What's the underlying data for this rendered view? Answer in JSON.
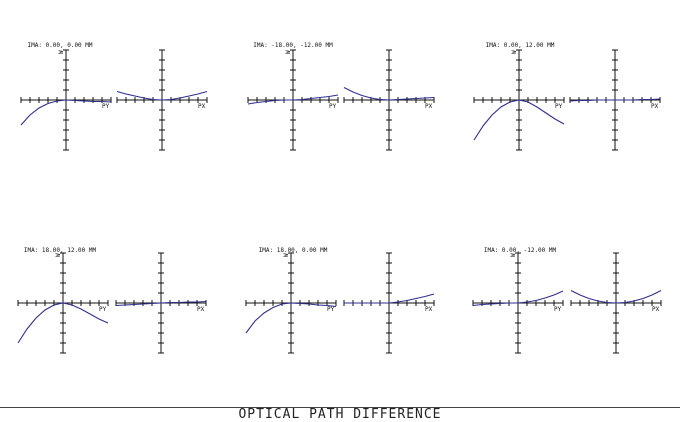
{
  "footer": {
    "title": "OPTICAL PATH DIFFERENCE"
  },
  "style": {
    "curve_color": "#2f2f8f",
    "axis_color": "#111111"
  },
  "chart_data": [
    {
      "type": "line",
      "title": "IMA: 0.00, 0.00 MM",
      "tangential": {
        "xlabel": "PY",
        "ylabel": "W",
        "x": [
          -1,
          -0.8,
          -0.6,
          -0.4,
          -0.2,
          0,
          0.2,
          0.4,
          0.6,
          0.8,
          1
        ],
        "y": [
          -0.5,
          -0.3,
          -0.16,
          -0.07,
          -0.02,
          0,
          -0.01,
          -0.02,
          -0.03,
          -0.03,
          -0.04
        ]
      },
      "sagittal": {
        "xlabel": "PX",
        "x": [
          -1,
          -0.8,
          -0.6,
          -0.4,
          -0.2,
          0,
          0.2,
          0.4,
          0.6,
          0.8,
          1
        ],
        "y": [
          0.17,
          0.12,
          0.08,
          0.04,
          0.01,
          0,
          0.01,
          0.04,
          0.08,
          0.12,
          0.17
        ]
      }
    },
    {
      "type": "line",
      "title": "IMA: -18.00, -12.00 MM",
      "tangential": {
        "xlabel": "PY",
        "ylabel": "W",
        "x": [
          -1,
          -0.8,
          -0.6,
          -0.4,
          -0.2,
          0,
          0.2,
          0.4,
          0.6,
          0.8,
          1
        ],
        "y": [
          -0.08,
          -0.05,
          -0.03,
          -0.01,
          0,
          0,
          0.01,
          0.03,
          0.05,
          0.07,
          0.1
        ]
      },
      "sagittal": {
        "xlabel": "PX",
        "x": [
          -1,
          -0.8,
          -0.6,
          -0.4,
          -0.2,
          0,
          0.2,
          0.4,
          0.6,
          0.8,
          1
        ],
        "y": [
          0.25,
          0.16,
          0.09,
          0.04,
          0.01,
          0,
          0.01,
          0.02,
          0.03,
          0.04,
          0.05
        ]
      }
    },
    {
      "type": "line",
      "title": "IMA: 0.00, 12.00 MM",
      "tangential": {
        "xlabel": "PY",
        "ylabel": "W",
        "x": [
          -1,
          -0.8,
          -0.6,
          -0.4,
          -0.2,
          0,
          0.2,
          0.4,
          0.6,
          0.8,
          1
        ],
        "y": [
          -0.8,
          -0.52,
          -0.3,
          -0.14,
          -0.04,
          0,
          -0.04,
          -0.14,
          -0.26,
          -0.38,
          -0.48
        ]
      },
      "sagittal": {
        "xlabel": "PX",
        "x": [
          -1,
          -0.8,
          -0.6,
          -0.4,
          -0.2,
          0,
          0.2,
          0.4,
          0.6,
          0.8,
          1
        ],
        "y": [
          -0.02,
          -0.01,
          -0.01,
          0,
          0,
          0,
          0,
          0,
          0.01,
          0.01,
          0.02
        ]
      }
    },
    {
      "type": "line",
      "title": "IMA: 18.00, 12.00 MM",
      "tangential": {
        "xlabel": "PY",
        "ylabel": "W",
        "x": [
          -1,
          -0.8,
          -0.6,
          -0.4,
          -0.2,
          0,
          0.2,
          0.4,
          0.6,
          0.8,
          1
        ],
        "y": [
          -0.8,
          -0.52,
          -0.3,
          -0.14,
          -0.04,
          0,
          -0.04,
          -0.12,
          -0.22,
          -0.32,
          -0.4
        ]
      },
      "sagittal": {
        "xlabel": "PX",
        "x": [
          -1,
          -0.8,
          -0.6,
          -0.4,
          -0.2,
          0,
          0.2,
          0.4,
          0.6,
          0.8,
          1
        ],
        "y": [
          -0.05,
          -0.04,
          -0.03,
          -0.02,
          -0.01,
          0,
          0.01,
          0.01,
          0.02,
          0.02,
          0.03
        ]
      }
    },
    {
      "type": "line",
      "title": "IMA: 18.00, 0.00 MM",
      "tangential": {
        "xlabel": "PY",
        "ylabel": "W",
        "x": [
          -1,
          -0.8,
          -0.6,
          -0.4,
          -0.2,
          0,
          0.2,
          0.4,
          0.6,
          0.8,
          1
        ],
        "y": [
          -0.6,
          -0.36,
          -0.2,
          -0.09,
          -0.02,
          0,
          -0.01,
          -0.02,
          -0.04,
          -0.05,
          -0.07
        ]
      },
      "sagittal": {
        "xlabel": "PX",
        "x": [
          -1,
          -0.8,
          -0.6,
          -0.4,
          -0.2,
          0,
          0.2,
          0.4,
          0.6,
          0.8,
          1
        ],
        "y": [
          0,
          0,
          0,
          0,
          0,
          0,
          0.02,
          0.05,
          0.09,
          0.13,
          0.18
        ]
      }
    },
    {
      "type": "line",
      "title": "IMA: 0.00, -12.00 MM",
      "tangential": {
        "xlabel": "PY",
        "ylabel": "W",
        "x": [
          -1,
          -0.8,
          -0.6,
          -0.4,
          -0.2,
          0,
          0.2,
          0.4,
          0.6,
          0.8,
          1
        ],
        "y": [
          -0.05,
          -0.03,
          -0.02,
          -0.01,
          0,
          0,
          0.02,
          0.05,
          0.1,
          0.16,
          0.24
        ]
      },
      "sagittal": {
        "xlabel": "PX",
        "x": [
          -1,
          -0.8,
          -0.6,
          -0.4,
          -0.2,
          0,
          0.2,
          0.4,
          0.6,
          0.8,
          1
        ],
        "y": [
          0.25,
          0.16,
          0.09,
          0.04,
          0.01,
          0,
          0.01,
          0.04,
          0.09,
          0.16,
          0.25
        ]
      }
    }
  ]
}
